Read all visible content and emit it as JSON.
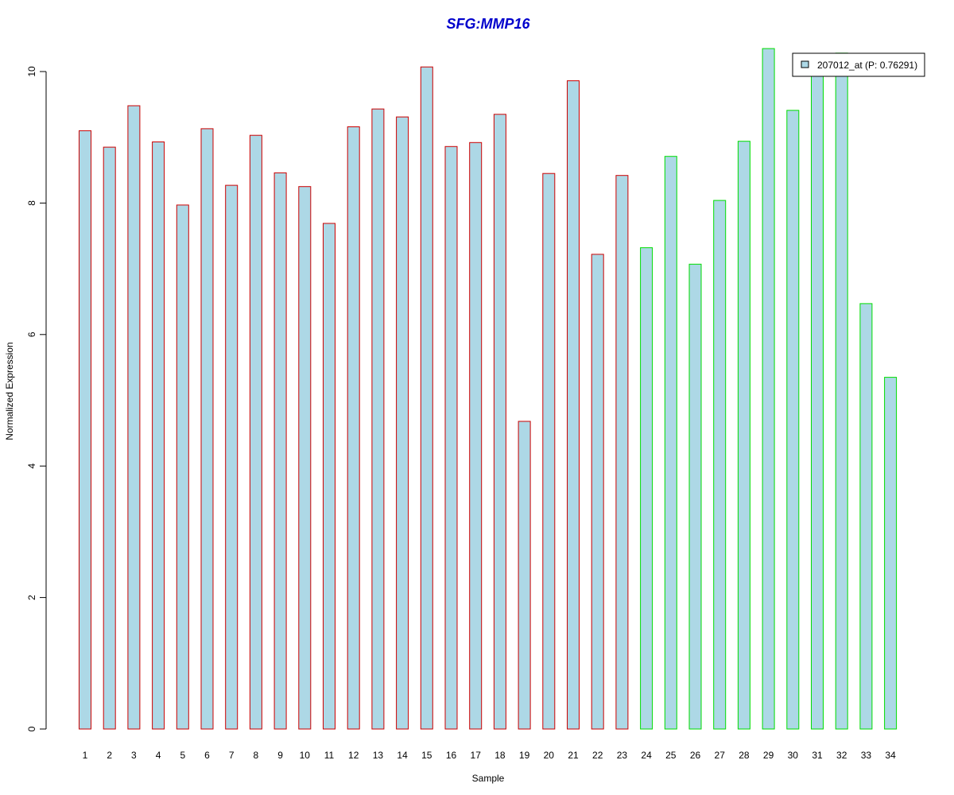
{
  "chart_data": {
    "type": "bar",
    "title": "SFG:MMP16",
    "xlabel": "Sample",
    "ylabel": "Normalized Expression",
    "categories": [
      "1",
      "2",
      "3",
      "4",
      "5",
      "6",
      "7",
      "8",
      "9",
      "10",
      "11",
      "12",
      "13",
      "14",
      "15",
      "16",
      "17",
      "18",
      "19",
      "20",
      "21",
      "22",
      "23",
      "24",
      "25",
      "26",
      "27",
      "28",
      "29",
      "30",
      "31",
      "32",
      "33",
      "34"
    ],
    "series": [
      {
        "name": "207012_at (P: 0.76291)",
        "values": [
          9.1,
          8.85,
          9.48,
          8.93,
          7.97,
          9.13,
          8.27,
          9.03,
          8.46,
          8.25,
          7.69,
          9.16,
          9.43,
          9.31,
          10.07,
          8.86,
          8.92,
          9.35,
          4.68,
          8.45,
          9.86,
          7.22,
          8.42,
          7.32,
          8.71,
          7.07,
          8.04,
          8.94,
          10.35,
          9.41,
          9.97,
          10.28,
          6.47,
          5.35
        ],
        "fill": "#add8e6",
        "border_colors": [
          "#cc0000",
          "#cc0000",
          "#cc0000",
          "#cc0000",
          "#cc0000",
          "#cc0000",
          "#cc0000",
          "#cc0000",
          "#cc0000",
          "#cc0000",
          "#cc0000",
          "#cc0000",
          "#cc0000",
          "#cc0000",
          "#cc0000",
          "#cc0000",
          "#cc0000",
          "#cc0000",
          "#cc0000",
          "#cc0000",
          "#cc0000",
          "#cc0000",
          "#cc0000",
          "#00dd00",
          "#00dd00",
          "#00dd00",
          "#00dd00",
          "#00dd00",
          "#00dd00",
          "#00dd00",
          "#00dd00",
          "#00dd00",
          "#00dd00",
          "#00dd00"
        ]
      }
    ],
    "yticks": [
      "0",
      "2",
      "4",
      "6",
      "8",
      "10"
    ],
    "ylim": [
      0,
      10.4
    ],
    "grid": false,
    "legend_position": "top-right",
    "title_color": "#0000cc"
  }
}
